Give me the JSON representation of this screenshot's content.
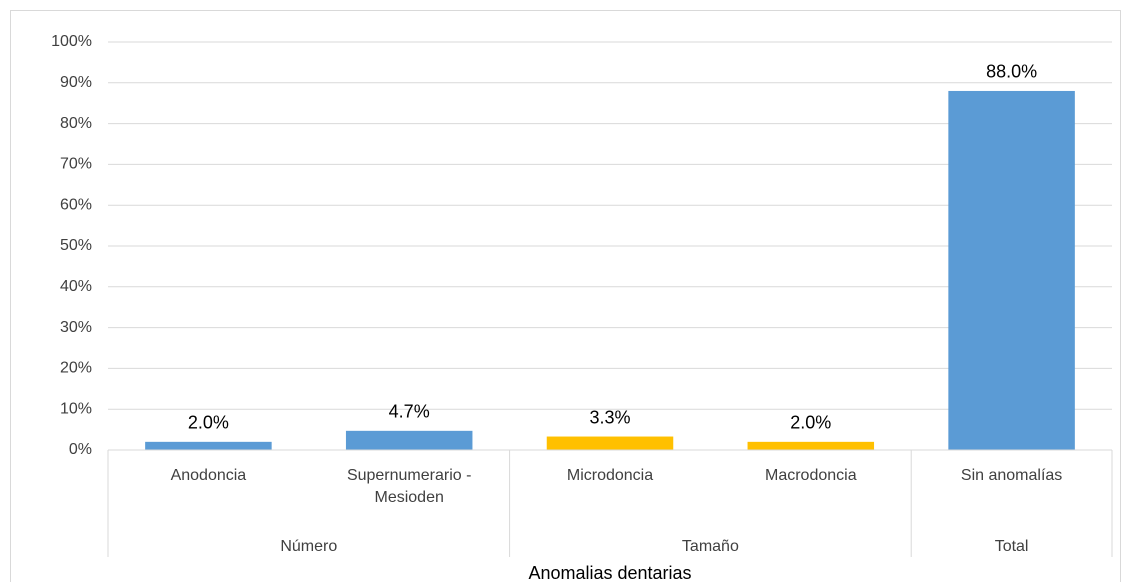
{
  "chart_data": {
    "type": "bar",
    "x_label": "Anomalias dentarias",
    "groups": [
      {
        "name": "Número",
        "categories": [
          "Anodoncia",
          "Supernumerario -Mesioden"
        ],
        "values": [
          2.0,
          4.7
        ],
        "value_labels": [
          "2.0%",
          "4.7%"
        ],
        "color": "#5b9bd5"
      },
      {
        "name": "Tamaño",
        "categories": [
          "Microdoncia",
          "Macrodoncia"
        ],
        "values": [
          3.3,
          2.0
        ],
        "value_labels": [
          "3.3%",
          "2.0%"
        ],
        "color": "#ffc000"
      },
      {
        "name": "Total",
        "categories": [
          "Sin anomalías"
        ],
        "values": [
          88.0
        ],
        "value_labels": [
          "88.0%"
        ],
        "color": "#5b9bd5"
      }
    ],
    "ylim": [
      0,
      100
    ],
    "yticks": [
      {
        "value": 0,
        "label": "0%"
      },
      {
        "value": 10,
        "label": "10%"
      },
      {
        "value": 20,
        "label": "20%"
      },
      {
        "value": 30,
        "label": "30%"
      },
      {
        "value": 40,
        "label": "40%"
      },
      {
        "value": 50,
        "label": "50%"
      },
      {
        "value": 60,
        "label": "60%"
      },
      {
        "value": 70,
        "label": "70%"
      },
      {
        "value": 80,
        "label": "80%"
      },
      {
        "value": 90,
        "label": "90%"
      },
      {
        "value": 100,
        "label": "100%"
      }
    ],
    "grid": true
  }
}
